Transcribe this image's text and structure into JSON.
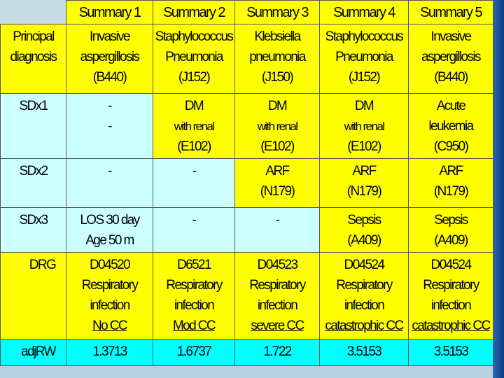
{
  "headers": [
    "Summary 1",
    "Summary 2",
    "Summary 3",
    "Summary 4",
    "Summary 5"
  ],
  "rows": [
    {
      "label": [
        "Principal",
        "diagnosis"
      ],
      "cells": [
        [
          "Invasive",
          "aspergillosis",
          "(B440)"
        ],
        [
          "Staphylococcus",
          "Pneumonia",
          "(J152)"
        ],
        [
          "Klebsiella",
          "pneumonia",
          "(J150)"
        ],
        [
          "Staphylococcus",
          "Pneumonia",
          "(J152)"
        ],
        [
          "Invasive",
          "aspergillosis",
          "(B440)"
        ]
      ]
    },
    {
      "label": [
        "SDx1"
      ],
      "cells": [
        [
          "-",
          "-"
        ],
        [
          "DM",
          "with renal",
          "(E102)"
        ],
        [
          "DM",
          "with renal",
          "(E102)"
        ],
        [
          "DM",
          "with renal",
          "(E102)"
        ],
        [
          "Acute",
          "leukemia",
          "(C950)"
        ]
      ]
    },
    {
      "label": [
        "SDx2"
      ],
      "cells": [
        [
          "-"
        ],
        [
          "-"
        ],
        [
          "ARF",
          "(N179)"
        ],
        [
          "ARF",
          "(N179)"
        ],
        [
          "ARF",
          "(N179)"
        ]
      ]
    },
    {
      "label": [
        "SDx3"
      ],
      "cells": [
        [
          "LOS 30 day",
          "Age 50 m"
        ],
        [
          "-"
        ],
        [
          "-"
        ],
        [
          "Sepsis",
          "(A409)"
        ],
        [
          "Sepsis",
          "(A409)"
        ]
      ]
    },
    {
      "label": [
        "DRG"
      ],
      "cells": [
        [
          "D04520",
          "Respiratory",
          "infection",
          "No CC"
        ],
        [
          "D6521",
          "Respiratory",
          "infection",
          "Mod CC"
        ],
        [
          "D04523",
          "Respiratory",
          "infection",
          "severe CC"
        ],
        [
          "D04524",
          "Respiratory",
          "infection",
          "catastrophic CC"
        ],
        [
          "D04524",
          "Respiratory",
          "infection",
          "catastrophic CC"
        ]
      ]
    },
    {
      "label": [
        "adjRW"
      ],
      "cells": [
        [
          "1.3713"
        ],
        [
          "1.6737"
        ],
        [
          "1.722"
        ],
        [
          "3.5153"
        ],
        [
          "3.5153"
        ]
      ]
    }
  ]
}
